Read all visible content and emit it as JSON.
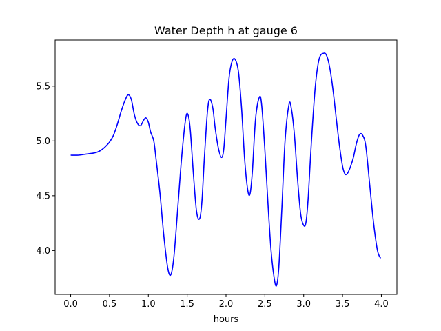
{
  "chart_data": {
    "type": "line",
    "title": "Water Depth h at gauge 6",
    "xlabel": "hours",
    "ylabel": "",
    "xlim": [
      -0.2,
      4.2
    ],
    "ylim": [
      3.6,
      5.92
    ],
    "x_ticks": [
      0.0,
      0.5,
      1.0,
      1.5,
      2.0,
      2.5,
      3.0,
      3.5,
      4.0
    ],
    "x_tick_labels": [
      "0.0",
      "0.5",
      "1.0",
      "1.5",
      "2.0",
      "2.5",
      "3.0",
      "3.5",
      "4.0"
    ],
    "y_ticks": [
      4.0,
      4.5,
      5.0,
      5.5
    ],
    "y_tick_labels": [
      "4.0",
      "4.5",
      "5.0",
      "5.5"
    ],
    "grid": false,
    "legend": "none",
    "colors": {
      "line": "#0000ff",
      "axes": "#000000",
      "background": "#ffffff"
    },
    "series": [
      {
        "x": [
          0.0,
          0.1,
          0.2,
          0.3,
          0.35,
          0.4,
          0.45,
          0.5,
          0.55,
          0.6,
          0.65,
          0.7,
          0.74,
          0.78,
          0.82,
          0.86,
          0.9,
          0.94,
          0.97,
          1.0,
          1.03,
          1.07,
          1.1,
          1.15,
          1.2,
          1.25,
          1.29,
          1.33,
          1.38,
          1.43,
          1.48,
          1.51,
          1.54,
          1.58,
          1.62,
          1.66,
          1.69,
          1.72,
          1.76,
          1.79,
          1.83,
          1.86,
          1.9,
          1.94,
          1.97,
          2.0,
          2.04,
          2.08,
          2.12,
          2.16,
          2.2,
          2.24,
          2.28,
          2.31,
          2.34,
          2.38,
          2.43,
          2.46,
          2.5,
          2.54,
          2.58,
          2.62,
          2.65,
          2.68,
          2.72,
          2.76,
          2.81,
          2.84,
          2.88,
          2.92,
          2.96,
          3.0,
          3.03,
          3.06,
          3.1,
          3.15,
          3.2,
          3.26,
          3.3,
          3.34,
          3.38,
          3.42,
          3.46,
          3.5,
          3.53,
          3.56,
          3.6,
          3.64,
          3.68,
          3.72,
          3.76,
          3.8,
          3.85,
          3.9,
          3.95,
          3.99
        ],
        "y": [
          4.87,
          4.87,
          4.88,
          4.89,
          4.9,
          4.92,
          4.95,
          4.99,
          5.05,
          5.15,
          5.27,
          5.37,
          5.42,
          5.38,
          5.24,
          5.16,
          5.14,
          5.19,
          5.21,
          5.17,
          5.08,
          5.0,
          4.83,
          4.52,
          4.13,
          3.84,
          3.78,
          3.95,
          4.4,
          4.86,
          5.2,
          5.24,
          5.1,
          4.7,
          4.36,
          4.29,
          4.45,
          4.83,
          5.26,
          5.38,
          5.3,
          5.12,
          4.94,
          4.85,
          4.92,
          5.2,
          5.58,
          5.73,
          5.74,
          5.63,
          5.3,
          4.83,
          4.55,
          4.52,
          4.73,
          5.2,
          5.4,
          5.32,
          4.92,
          4.43,
          4.0,
          3.75,
          3.68,
          3.85,
          4.4,
          5.0,
          5.33,
          5.3,
          5.06,
          4.66,
          4.34,
          4.23,
          4.26,
          4.5,
          5.0,
          5.5,
          5.75,
          5.8,
          5.77,
          5.65,
          5.45,
          5.2,
          4.96,
          4.77,
          4.7,
          4.7,
          4.76,
          4.85,
          4.98,
          5.06,
          5.05,
          4.95,
          4.6,
          4.25,
          4.0,
          3.93
        ]
      }
    ]
  }
}
